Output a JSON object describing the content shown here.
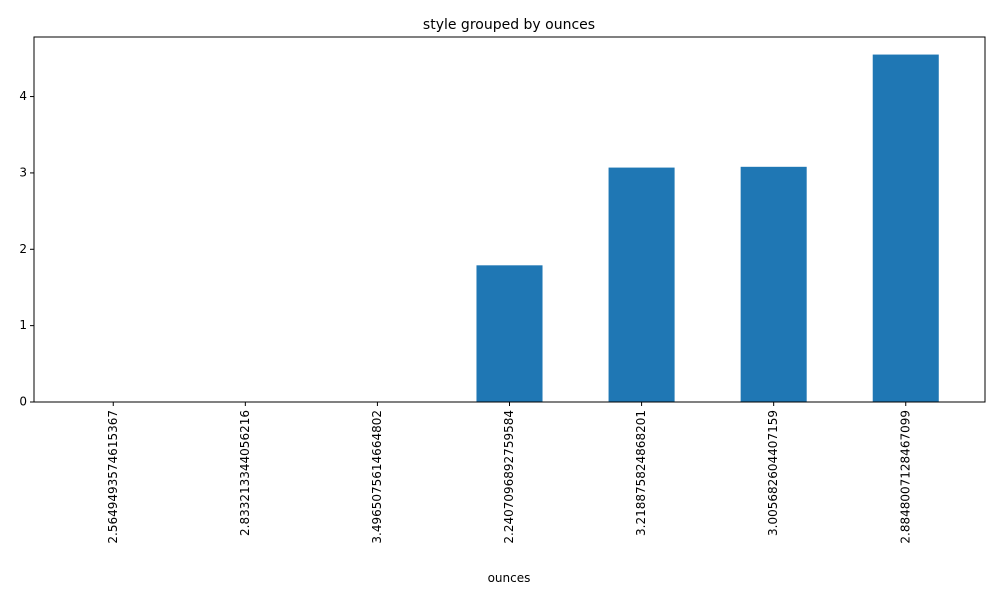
{
  "chart_data": {
    "type": "bar",
    "title": "style grouped by ounces",
    "xlabel": "ounces",
    "ylabel": "",
    "categories": [
      "2.5649493574615367",
      "2.833213344056216",
      "3.4965075614664802",
      "2.2407096892759584",
      "3.218875824868201",
      "3.005682604407159",
      "2.8848007128467099"
    ],
    "values": [
      0,
      0,
      0,
      1.79,
      3.07,
      3.08,
      4.55
    ],
    "ylim": [
      0,
      4.78
    ],
    "yticks": [
      0,
      1,
      2,
      3,
      4
    ],
    "bar_color": "#1f77b4",
    "grid": false,
    "legend": "none"
  }
}
